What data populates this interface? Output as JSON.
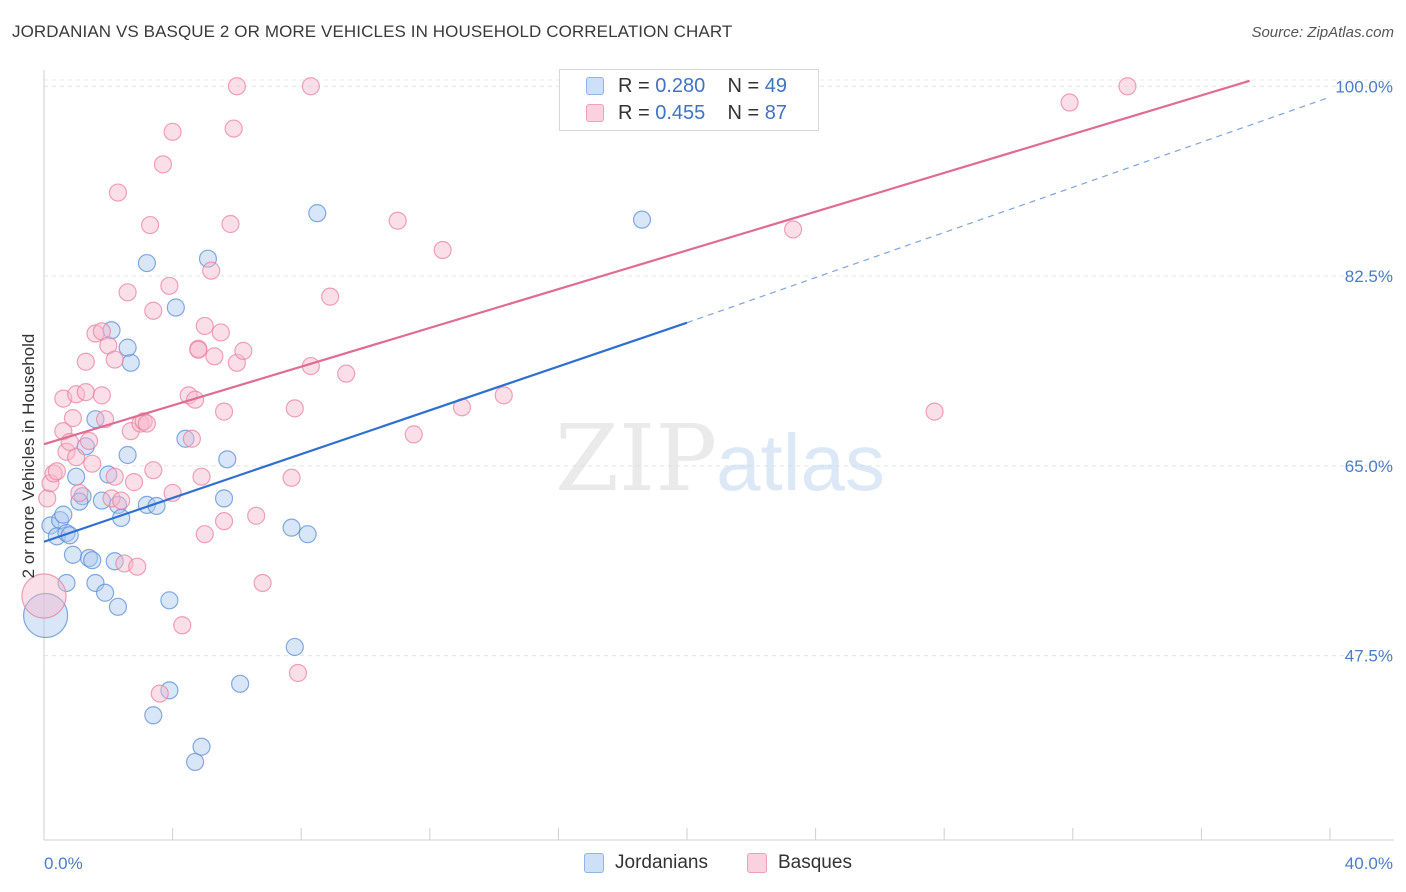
{
  "title": "JORDANIAN VS BASQUE 2 OR MORE VEHICLES IN HOUSEHOLD CORRELATION CHART",
  "source": "Source: ZipAtlas.com",
  "watermark": {
    "zip": "ZIP",
    "atlas": "atlas"
  },
  "legend": {
    "rows": [
      {
        "r_label": "R = ",
        "r_value": "0.280",
        "n_label": "N = ",
        "n_value": "49",
        "color": "#aac8ef"
      },
      {
        "r_label": "R = ",
        "r_value": "0.455",
        "n_label": "N = ",
        "n_value": "87",
        "color": "#f6b8cb"
      }
    ]
  },
  "bottom_legend": [
    {
      "label": "Jordanians",
      "color": "#aac8ef"
    },
    {
      "label": "Basques",
      "color": "#f6b8cb"
    }
  ],
  "chart_data": {
    "type": "scatter",
    "ylabel": "2 or more Vehicles in Household",
    "xlim": [
      0,
      40
    ],
    "ylim": [
      30.5,
      101.5
    ],
    "x_tick_labels": [
      "0.0%",
      "40.0%"
    ],
    "y_ticks": [
      47.5,
      65.0,
      82.5,
      100.0
    ],
    "y_tick_labels": [
      "47.5%",
      "65.0%",
      "82.5%",
      "100.0%"
    ],
    "grid": true,
    "series": [
      {
        "name": "Jordanians",
        "color": "#5b8fd6",
        "fill": "#aac8ef",
        "trend": {
          "x0": 0,
          "y0": 58.0,
          "x1": 20,
          "y1": 78.2,
          "dash_to_x": 40,
          "dash_to_y": 99.0,
          "color": "#2f6fcf"
        },
        "points": [
          [
            0.2,
            59.5
          ],
          [
            0.5,
            60.0
          ],
          [
            0.4,
            58.5
          ],
          [
            0.7,
            58.8
          ],
          [
            0.8,
            58.6
          ],
          [
            0.6,
            60.5
          ],
          [
            1.0,
            64.0
          ],
          [
            1.2,
            62.2
          ],
          [
            1.1,
            61.7
          ],
          [
            1.3,
            66.8
          ],
          [
            0.9,
            56.8
          ],
          [
            1.4,
            56.5
          ],
          [
            0.7,
            54.2
          ],
          [
            1.6,
            54.2
          ],
          [
            1.5,
            56.3
          ],
          [
            1.6,
            69.3
          ],
          [
            1.8,
            61.8
          ],
          [
            1.9,
            53.3
          ],
          [
            2.0,
            64.2
          ],
          [
            2.1,
            77.5
          ],
          [
            2.2,
            56.2
          ],
          [
            2.3,
            52.0
          ],
          [
            2.3,
            61.4
          ],
          [
            2.4,
            60.2
          ],
          [
            2.6,
            66.0
          ],
          [
            2.7,
            74.5
          ],
          [
            2.6,
            75.9
          ],
          [
            3.2,
            83.7
          ],
          [
            3.2,
            61.4
          ],
          [
            3.5,
            61.3
          ],
          [
            3.4,
            42.0
          ],
          [
            3.9,
            52.6
          ],
          [
            3.9,
            44.3
          ],
          [
            4.1,
            79.6
          ],
          [
            4.4,
            67.5
          ],
          [
            4.7,
            37.7
          ],
          [
            4.9,
            39.1
          ],
          [
            5.1,
            84.1
          ],
          [
            5.6,
            62.0
          ],
          [
            5.7,
            65.6
          ],
          [
            6.1,
            44.9
          ],
          [
            7.7,
            59.3
          ],
          [
            7.8,
            48.3
          ],
          [
            8.2,
            58.7
          ],
          [
            8.5,
            88.3
          ],
          [
            18.6,
            87.7
          ],
          [
            0.05,
            51.2
          ]
        ]
      },
      {
        "name": "Basques",
        "color": "#e9839f",
        "fill": "#f6b8cb",
        "trend": {
          "x0": 0,
          "y0": 67.0,
          "x1": 37.5,
          "y1": 100.5,
          "color": "#e06b93"
        },
        "points": [
          [
            0.1,
            62.0
          ],
          [
            0.2,
            63.4
          ],
          [
            0.3,
            64.3
          ],
          [
            0.4,
            64.5
          ],
          [
            0.6,
            71.2
          ],
          [
            0.6,
            68.2
          ],
          [
            0.7,
            66.3
          ],
          [
            0.8,
            67.2
          ],
          [
            0.9,
            69.4
          ],
          [
            1.0,
            71.6
          ],
          [
            1.0,
            65.8
          ],
          [
            1.1,
            62.5
          ],
          [
            1.3,
            71.8
          ],
          [
            1.3,
            74.6
          ],
          [
            1.4,
            67.3
          ],
          [
            1.5,
            65.2
          ],
          [
            1.6,
            77.2
          ],
          [
            1.8,
            71.5
          ],
          [
            1.8,
            77.4
          ],
          [
            1.9,
            69.3
          ],
          [
            2.0,
            76.1
          ],
          [
            2.1,
            62.0
          ],
          [
            2.2,
            64.0
          ],
          [
            2.2,
            74.8
          ],
          [
            2.3,
            90.2
          ],
          [
            2.4,
            61.8
          ],
          [
            2.5,
            56.0
          ],
          [
            2.6,
            81.0
          ],
          [
            2.7,
            68.2
          ],
          [
            2.8,
            63.5
          ],
          [
            2.9,
            55.7
          ],
          [
            3.0,
            68.9
          ],
          [
            3.1,
            69.1
          ],
          [
            3.2,
            68.9
          ],
          [
            3.3,
            87.2
          ],
          [
            3.4,
            64.6
          ],
          [
            3.4,
            79.3
          ],
          [
            3.6,
            44.0
          ],
          [
            3.7,
            92.8
          ],
          [
            3.9,
            81.6
          ],
          [
            4.0,
            62.5
          ],
          [
            4.0,
            95.8
          ],
          [
            4.3,
            50.3
          ],
          [
            4.5,
            71.5
          ],
          [
            4.6,
            67.5
          ],
          [
            4.7,
            71.1
          ],
          [
            4.8,
            75.8
          ],
          [
            4.8,
            75.7
          ],
          [
            4.9,
            64.0
          ],
          [
            5.0,
            58.7
          ],
          [
            5.0,
            77.9
          ],
          [
            5.2,
            83.0
          ],
          [
            5.3,
            75.1
          ],
          [
            5.5,
            77.3
          ],
          [
            5.6,
            70.0
          ],
          [
            5.6,
            59.9
          ],
          [
            5.8,
            87.3
          ],
          [
            5.9,
            96.1
          ],
          [
            6.0,
            100.0
          ],
          [
            6.0,
            74.5
          ],
          [
            6.2,
            75.6
          ],
          [
            6.6,
            60.4
          ],
          [
            6.8,
            54.2
          ],
          [
            7.7,
            63.9
          ],
          [
            7.8,
            70.3
          ],
          [
            7.9,
            45.9
          ],
          [
            8.3,
            100.0
          ],
          [
            8.3,
            74.2
          ],
          [
            8.9,
            80.6
          ],
          [
            9.4,
            73.5
          ],
          [
            11.0,
            87.6
          ],
          [
            11.5,
            67.9
          ],
          [
            12.4,
            84.9
          ],
          [
            13.0,
            70.4
          ],
          [
            14.3,
            71.5
          ],
          [
            20.9,
            100.0
          ],
          [
            23.3,
            86.8
          ],
          [
            27.7,
            70.0
          ],
          [
            31.9,
            98.5
          ],
          [
            33.7,
            100.0
          ],
          [
            0.0,
            53.0
          ]
        ]
      }
    ]
  }
}
